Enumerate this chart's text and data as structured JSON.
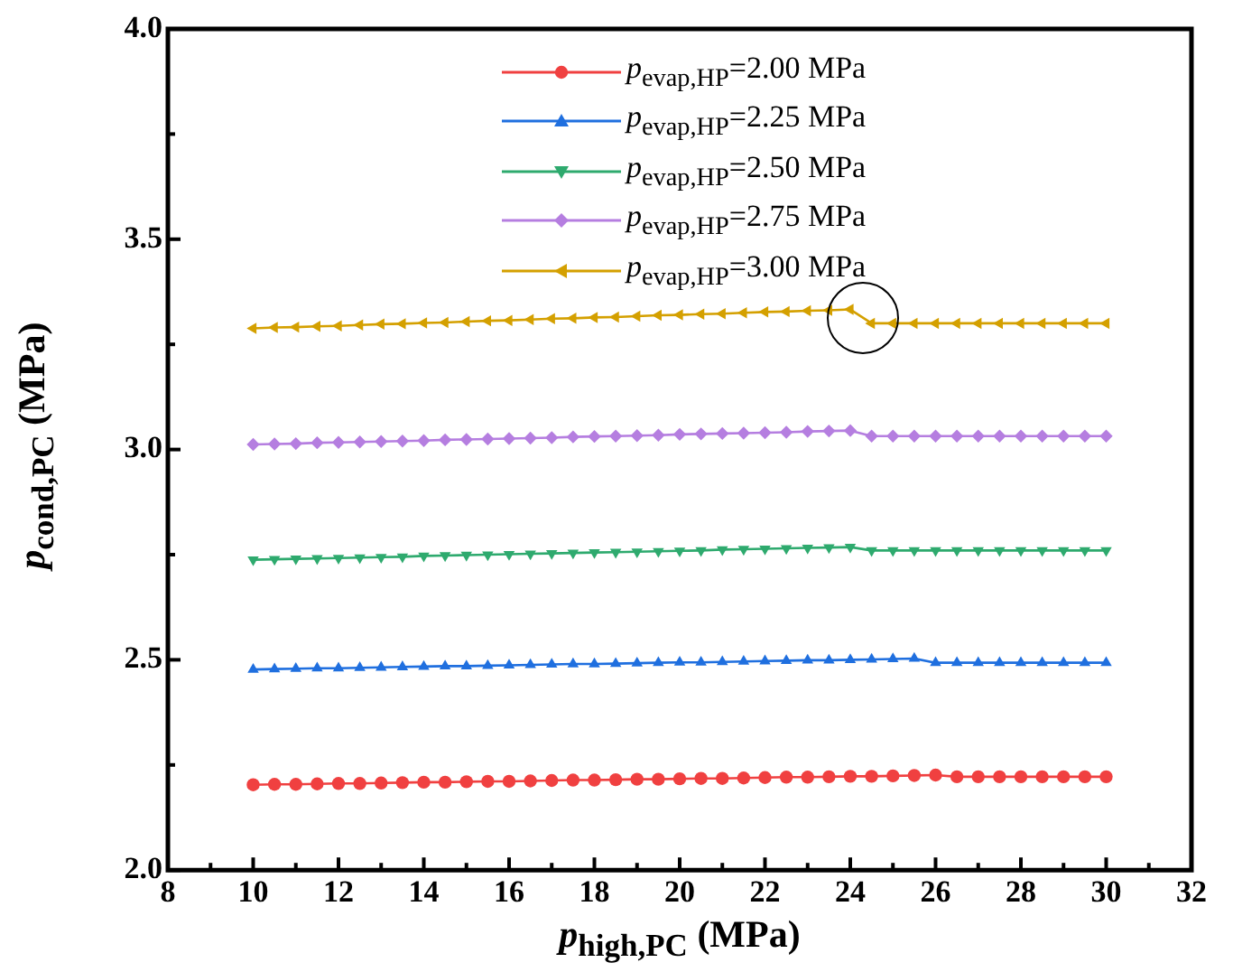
{
  "chart_data": {
    "type": "line",
    "xlabel": "p$_{high,PC}$ (MPa)",
    "ylabel": "p$_{cond,PC}$ (MPa)",
    "x": [
      10,
      10.5,
      11,
      11.5,
      12,
      12.5,
      13,
      13.5,
      14,
      14.5,
      15,
      15.5,
      16,
      16.5,
      17,
      17.5,
      18,
      18.5,
      19,
      19.5,
      20,
      20.5,
      21,
      21.5,
      22,
      22.5,
      23,
      23.5,
      24,
      24.5,
      25,
      25.5,
      26,
      26.5,
      27,
      27.5,
      28,
      28.5,
      29,
      29.5,
      30
    ],
    "xlim": [
      8,
      32
    ],
    "xticks": [
      8,
      {
        "value": 9,
        "label": null
      },
      10,
      {
        "value": 11,
        "label": null
      },
      12,
      {
        "value": 13,
        "label": null
      },
      14,
      {
        "value": 15,
        "label": null
      },
      16,
      {
        "value": 17,
        "label": null
      },
      18,
      {
        "value": 19,
        "label": null
      },
      20,
      {
        "value": 21,
        "label": null
      },
      22,
      {
        "value": 23,
        "label": null
      },
      24,
      {
        "value": 25,
        "label": null
      },
      26,
      {
        "value": 27,
        "label": null
      },
      28,
      {
        "value": 29,
        "label": null
      },
      30,
      {
        "value": 31,
        "label": null
      },
      32
    ],
    "ylim": [
      2,
      4
    ],
    "yticks": [
      {
        "value": 2,
        "label": "2.0"
      },
      {
        "value": 2.25,
        "label": null
      },
      {
        "value": 2.5,
        "label": "2.5"
      },
      {
        "value": 2.75,
        "label": null
      },
      {
        "value": 3,
        "label": "3.0"
      },
      {
        "value": 3.25,
        "label": null
      },
      {
        "value": 3.5,
        "label": "3.5"
      },
      {
        "value": 3.75,
        "label": null
      },
      {
        "value": 4,
        "label": "4.0"
      }
    ],
    "grid": false,
    "legend": "top",
    "line_style": "solid",
    "series": [
      {
        "name": "p$_{evap,HP}$=2.00 MPa",
        "color": "#f04040",
        "marker": "circle",
        "values": [
          2.203,
          2.204,
          2.204,
          2.205,
          2.206,
          2.206,
          2.207,
          2.208,
          2.209,
          2.209,
          2.21,
          2.211,
          2.211,
          2.212,
          2.213,
          2.214,
          2.214,
          2.215,
          2.216,
          2.216,
          2.217,
          2.218,
          2.218,
          2.219,
          2.22,
          2.221,
          2.221,
          2.222,
          2.223,
          2.223,
          2.224,
          2.225,
          2.226,
          2.222,
          2.222,
          2.222,
          2.222,
          2.222,
          2.222,
          2.222,
          2.222
        ]
      },
      {
        "name": "p$_{evap,HP}$=2.25 MPa",
        "color": "#1f6fdf",
        "marker": "triangle",
        "values": [
          2.477,
          2.478,
          2.479,
          2.48,
          2.48,
          2.481,
          2.482,
          2.483,
          2.484,
          2.485,
          2.485,
          2.486,
          2.487,
          2.488,
          2.489,
          2.49,
          2.49,
          2.491,
          2.492,
          2.493,
          2.494,
          2.494,
          2.495,
          2.496,
          2.497,
          2.498,
          2.499,
          2.499,
          2.5,
          2.501,
          2.502,
          2.503,
          2.493,
          2.493,
          2.493,
          2.493,
          2.493,
          2.493,
          2.493,
          2.493,
          2.493
        ]
      },
      {
        "name": "p$_{evap,HP}$=2.50 MPa",
        "color": "#2eaa6e",
        "marker": "triangle-down",
        "values": [
          2.738,
          2.739,
          2.74,
          2.741,
          2.742,
          2.743,
          2.744,
          2.745,
          2.747,
          2.748,
          2.749,
          2.75,
          2.751,
          2.752,
          2.753,
          2.754,
          2.755,
          2.756,
          2.757,
          2.758,
          2.759,
          2.76,
          2.762,
          2.763,
          2.764,
          2.765,
          2.766,
          2.767,
          2.768,
          2.76,
          2.76,
          2.76,
          2.76,
          2.76,
          2.76,
          2.76,
          2.76,
          2.76,
          2.76,
          2.76,
          2.76
        ]
      },
      {
        "name": "p$_{evap,HP}$=2.75 MPa",
        "color": "#b57ee0",
        "marker": "diamond",
        "values": [
          3.012,
          3.013,
          3.014,
          3.016,
          3.017,
          3.018,
          3.019,
          3.02,
          3.021,
          3.023,
          3.024,
          3.025,
          3.026,
          3.027,
          3.028,
          3.03,
          3.031,
          3.032,
          3.033,
          3.034,
          3.036,
          3.037,
          3.038,
          3.039,
          3.04,
          3.041,
          3.043,
          3.044,
          3.045,
          3.032,
          3.032,
          3.032,
          3.032,
          3.032,
          3.032,
          3.032,
          3.032,
          3.032,
          3.032,
          3.032,
          3.032
        ]
      },
      {
        "name": "p$_{evap,HP}$=3.00 MPa",
        "color": "#d4a000",
        "marker": "triangle-left",
        "values": [
          3.288,
          3.29,
          3.291,
          3.293,
          3.294,
          3.296,
          3.298,
          3.299,
          3.301,
          3.302,
          3.304,
          3.306,
          3.307,
          3.309,
          3.311,
          3.312,
          3.314,
          3.315,
          3.317,
          3.319,
          3.32,
          3.322,
          3.323,
          3.325,
          3.327,
          3.328,
          3.33,
          3.331,
          3.333,
          3.3,
          3.3,
          3.3,
          3.3,
          3.3,
          3.3,
          3.3,
          3.3,
          3.3,
          3.3,
          3.3,
          3.3
        ]
      }
    ]
  }
}
